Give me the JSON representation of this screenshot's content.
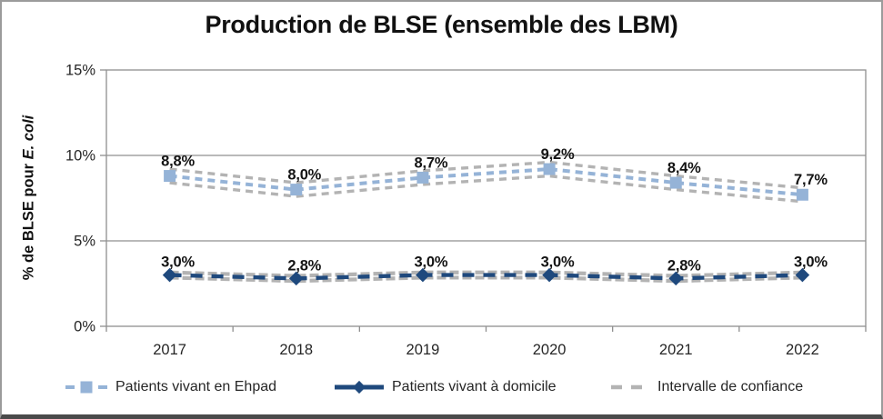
{
  "chart_data": {
    "type": "line",
    "title": "Production de BLSE (ensemble des LBM)",
    "ylabel": {
      "prefix": "% de BLSE pour ",
      "italic": "E. coli"
    },
    "xlabel": "",
    "x_categories": [
      "2017",
      "2018",
      "2019",
      "2020",
      "2021",
      "2022"
    ],
    "y_ticks": [
      "0%",
      "5%",
      "10%",
      "15%"
    ],
    "ylim": [
      0,
      15
    ],
    "grid": "horizontal",
    "legend_position": "bottom",
    "series": [
      {
        "name": "Patients vivant en Ehpad",
        "marker": "square",
        "line_style": "dashed",
        "color": "#95B3D7",
        "values": [
          8.8,
          8.0,
          8.7,
          9.2,
          8.4,
          7.7
        ],
        "labels": [
          "8,8%",
          "8,0%",
          "8,7%",
          "9,2%",
          "8,4%",
          "7,7%"
        ]
      },
      {
        "name": "Patients vivant à domicile",
        "marker": "diamond",
        "line_style": "dashed",
        "color": "#1F497D",
        "values": [
          3.0,
          2.8,
          3.0,
          3.0,
          2.8,
          3.0
        ],
        "labels": [
          "3,0%",
          "2,8%",
          "3,0%",
          "3,0%",
          "2,8%",
          "3,0%"
        ]
      },
      {
        "name": "Intervalle de confiance",
        "marker": "none",
        "line_style": "dashed",
        "color": "#B3B3B3",
        "bands": [
          {
            "around": "Patients vivant en Ehpad",
            "upper": [
              9.2,
              8.4,
              9.1,
              9.6,
              8.8,
              8.1
            ],
            "lower": [
              8.4,
              7.6,
              8.3,
              8.8,
              8.0,
              7.3
            ]
          },
          {
            "around": "Patients vivant à domicile",
            "upper": [
              3.15,
              2.95,
              3.15,
              3.15,
              2.95,
              3.15
            ],
            "lower": [
              2.85,
              2.65,
              2.85,
              2.85,
              2.65,
              2.85
            ]
          }
        ]
      }
    ],
    "colors": {
      "grid": "#8F8F8F",
      "tick_text": "#262626",
      "data_label_text": "#141414",
      "ehpad_blue": "#95B3D7",
      "domicile_blue": "#1F497D",
      "ci_gray": "#B3B3B3"
    }
  }
}
